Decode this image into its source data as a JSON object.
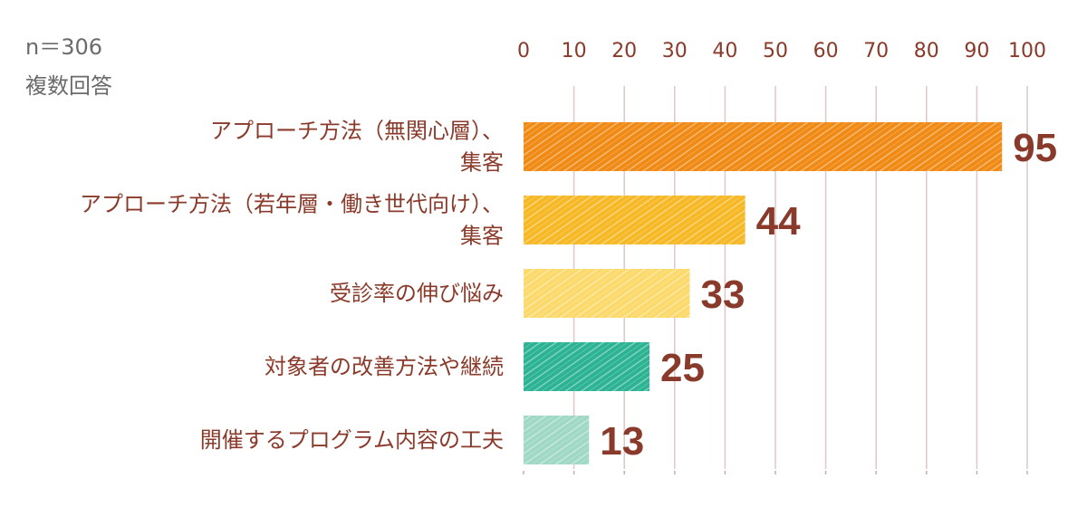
{
  "notes": {
    "sample": "n＝306",
    "multi": "複数回答"
  },
  "chart_data": {
    "type": "bar",
    "orientation": "horizontal",
    "categories": [
      [
        "アプローチ方法（無関心層）、",
        "集客"
      ],
      [
        "アプローチ方法（若年層・働き世代向け）、",
        "集客"
      ],
      [
        "受診率の伸び悩み"
      ],
      [
        "対象者の改善方法や継続"
      ],
      [
        "開催するプログラム内容の工夫"
      ]
    ],
    "values": [
      95,
      44,
      33,
      25,
      13
    ],
    "colors": [
      "#f08a14",
      "#f6b824",
      "#fbd96a",
      "#2bb393",
      "#9fd8c4"
    ],
    "xlim": [
      0,
      100
    ],
    "xticks": [
      0,
      10,
      20,
      30,
      40,
      50,
      60,
      70,
      80,
      90,
      100
    ],
    "axis_position": "top",
    "grid": true,
    "data_labels": true
  }
}
